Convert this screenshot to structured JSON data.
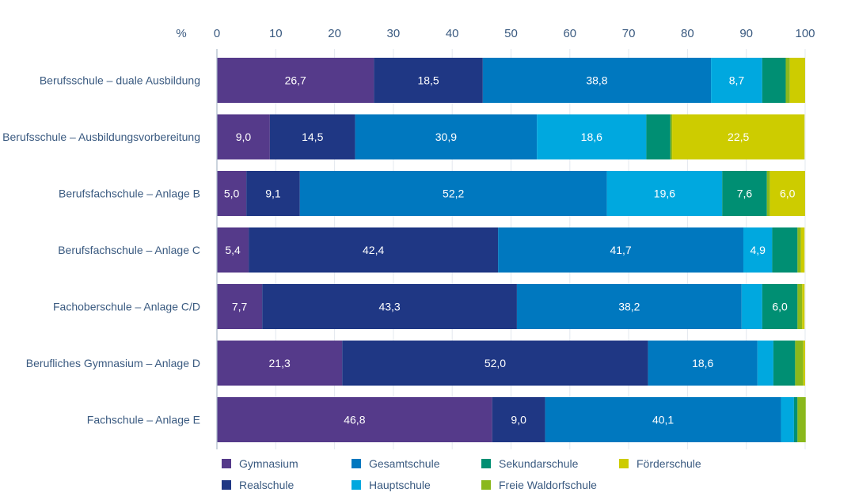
{
  "chart_data": {
    "type": "bar",
    "orientation": "horizontal",
    "stacked": true,
    "title": "",
    "xlabel": "",
    "unit_label": "%",
    "xlim": [
      0,
      100
    ],
    "xticks": [
      "0",
      "10",
      "20",
      "30",
      "40",
      "50",
      "60",
      "70",
      "80",
      "90",
      "100"
    ],
    "grid": true,
    "legend_position": "bottom",
    "categories": [
      "Berufsschule – duale Ausbildung",
      "Berufsschule – Ausbildungsvorbereitung",
      "Berufsfachschule – Anlage B",
      "Berufsfachschule – Anlage C",
      "Fachoberschule – Anlage C/D",
      "Berufliches Gymnasium – Anlage D",
      "Fachschule – Anlage E"
    ],
    "series": [
      {
        "name": "Gymnasium",
        "color": "#553a8a",
        "values": [
          26.7,
          9.0,
          5.0,
          5.4,
          7.7,
          21.3,
          46.8
        ],
        "labels": [
          "26,7",
          "9,0",
          "5,0",
          "5,4",
          "7,7",
          "21,3",
          "46,8"
        ]
      },
      {
        "name": "Realschule",
        "color": "#1f3784",
        "values": [
          18.5,
          14.5,
          9.1,
          42.4,
          43.3,
          52.0,
          9.0
        ],
        "labels": [
          "18,5",
          "14,5",
          "9,1",
          "42,4",
          "43,3",
          "52,0",
          "9,0"
        ]
      },
      {
        "name": "Gesamtschule",
        "color": "#0078bf",
        "values": [
          38.8,
          30.9,
          52.2,
          41.7,
          38.2,
          18.6,
          40.1
        ],
        "labels": [
          "38,8",
          "30,9",
          "52,2",
          "41,7",
          "38,2",
          "18,6",
          "40,1"
        ]
      },
      {
        "name": "Hauptschule",
        "color": "#00a8df",
        "values": [
          8.7,
          18.6,
          19.6,
          4.9,
          3.5,
          2.7,
          2.2
        ],
        "labels": [
          "8,7",
          "18,6",
          "19,6",
          "4,9",
          "",
          "",
          ""
        ]
      },
      {
        "name": "Sekundarschule",
        "color": "#008f73",
        "values": [
          4.0,
          4.1,
          7.6,
          4.3,
          6.0,
          3.7,
          0.6
        ],
        "labels": [
          "",
          "",
          "7,6",
          "",
          "6,0",
          "",
          ""
        ]
      },
      {
        "name": "Freie Waldorfschule",
        "color": "#8ab81c",
        "values": [
          0.7,
          0.3,
          0.5,
          0.6,
          0.8,
          1.4,
          1.4
        ],
        "labels": [
          "",
          "",
          "",
          "",
          "",
          "",
          ""
        ]
      },
      {
        "name": "Förderschule",
        "color": "#cdcc00",
        "values": [
          2.6,
          22.5,
          6.0,
          0.6,
          0.4,
          0.3,
          0.0
        ],
        "labels": [
          "",
          "22,5",
          "6,0",
          "",
          "",
          "",
          ""
        ]
      }
    ]
  },
  "legend": {
    "items": [
      {
        "name": "Gymnasium",
        "color": "#553a8a"
      },
      {
        "name": "Gesamtschule",
        "color": "#0078bf"
      },
      {
        "name": "Sekundarschule",
        "color": "#008f73"
      },
      {
        "name": "Förderschule",
        "color": "#cdcc00"
      },
      {
        "name": "Realschule",
        "color": "#1f3784"
      },
      {
        "name": "Hauptschule",
        "color": "#00a8df"
      },
      {
        "name": "Freie Waldorfschule",
        "color": "#8ab81c"
      }
    ]
  }
}
